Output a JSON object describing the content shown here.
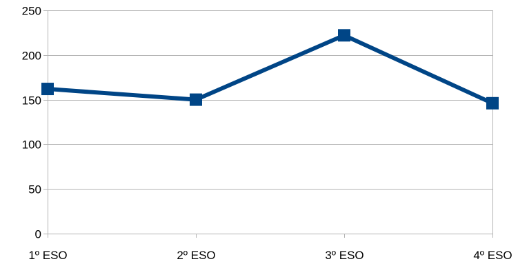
{
  "chart_data": {
    "type": "line",
    "title": "",
    "xlabel": "",
    "ylabel": "",
    "categories": [
      "1º ESO",
      "2º ESO",
      "3º ESO",
      "4º ESO"
    ],
    "series": [
      {
        "values": [
          162,
          150,
          222,
          146
        ]
      }
    ],
    "ylim": [
      0,
      250
    ],
    "yticks": [
      0,
      50,
      100,
      150,
      200,
      250
    ],
    "grid": true,
    "legend": "none",
    "colors": {
      "series": "#004586",
      "grid": "#b3b3b3",
      "axis": "#b3b3b3"
    }
  }
}
